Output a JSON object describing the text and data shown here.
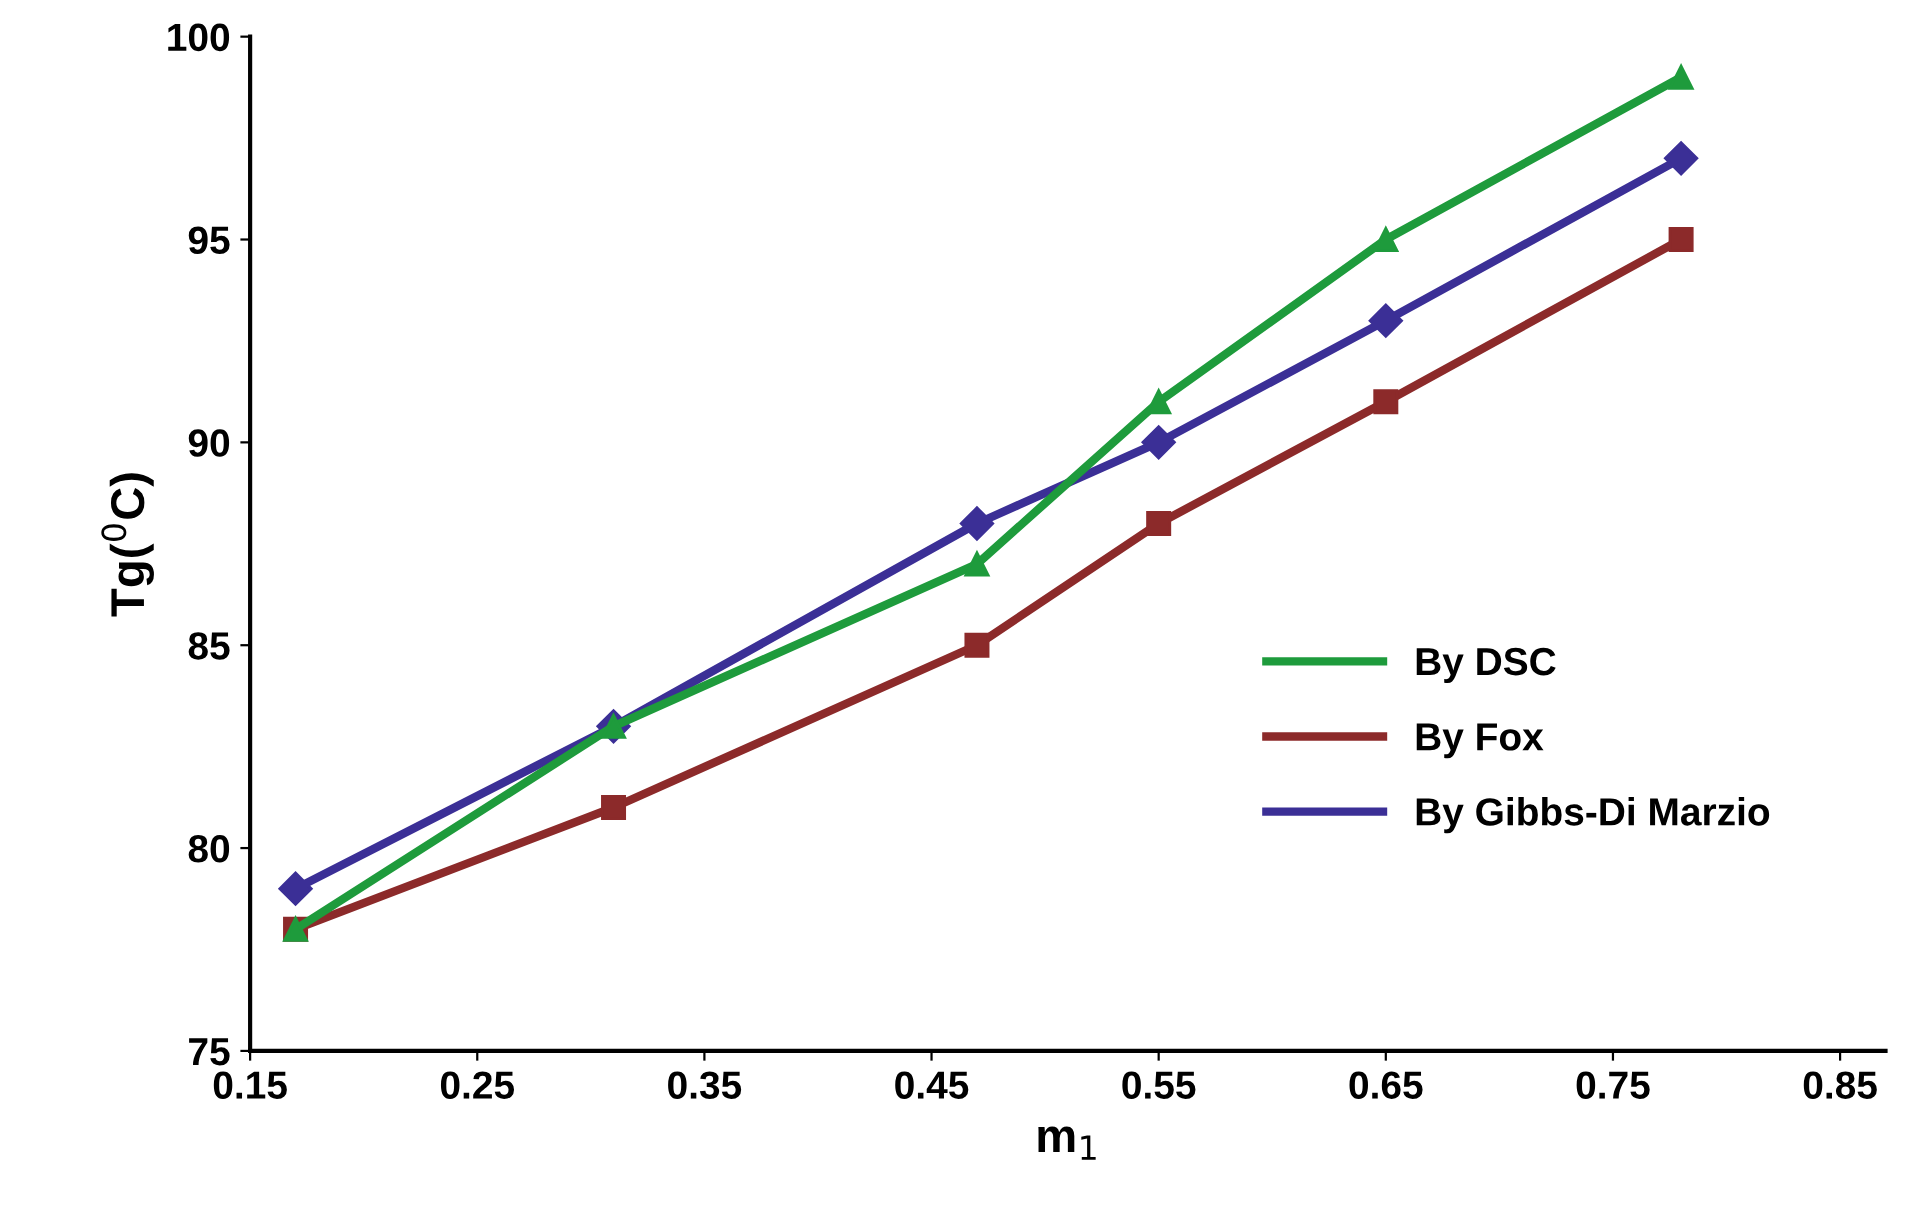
{
  "chart_data": {
    "type": "line",
    "xlabel": "m$_{1}$",
    "ylabel": "Tg($^{0}$C)",
    "x": [
      0.17,
      0.31,
      0.47,
      0.55,
      0.65,
      0.78
    ],
    "series": [
      {
        "name": "By DSC",
        "color": "#1e9b3c",
        "marker": "triangle",
        "values": [
          78,
          83,
          87,
          91,
          95,
          99
        ]
      },
      {
        "name": "By Fox",
        "color": "#8c2a2a",
        "marker": "square",
        "values": [
          78,
          81,
          85,
          88,
          91,
          95
        ]
      },
      {
        "name": "By Gibbs-Di Marzio",
        "color": "#3b2f96",
        "marker": "diamond",
        "values": [
          79,
          83,
          88,
          90,
          93,
          97
        ]
      }
    ],
    "xlim": [
      0.15,
      0.87
    ],
    "xticks": [
      0.15,
      0.25,
      0.35,
      0.45,
      0.55,
      0.65,
      0.75,
      0.85
    ],
    "ylim": [
      75,
      100
    ],
    "yticks": [
      75,
      80,
      85,
      90,
      95,
      100
    ],
    "grid": false,
    "legend": "bottom right",
    "line_style": "solid"
  }
}
